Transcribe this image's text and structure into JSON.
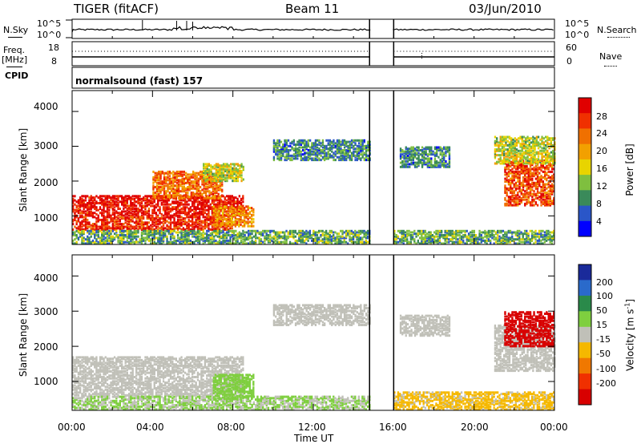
{
  "header": {
    "radar": "TIGER (fitACF)",
    "beam": "Beam 11",
    "date": "03/Jun/2010"
  },
  "strips": {
    "nsky_label": "N.Sky",
    "nsky_ticks": [
      "10^5",
      "10^0"
    ],
    "nsearch_label": "N.Search",
    "nsearch_ticks": [
      "10^5",
      "10^0"
    ],
    "freq_label": "Freq.",
    "freq_unit": "[MHz]",
    "freq_ticks": [
      "18",
      "8"
    ],
    "nave_label": "Nave",
    "nave_ticks": [
      "60",
      "0"
    ],
    "cpid_label": "CPID",
    "cpid_text": "normalsound (fast) 157"
  },
  "colors": {
    "power_scale": [
      "#0000ff",
      "#2a56c8",
      "#3a8a5a",
      "#7fbf3f",
      "#e8d400",
      "#f2a000",
      "#f07000",
      "#f03000",
      "#e00000"
    ],
    "velocity_scale": [
      "#1a2a9a",
      "#2a6acb",
      "#2a8a4a",
      "#7fcf3f",
      "#c0c0b8",
      "#f5b800",
      "#f07800",
      "#f03000",
      "#d80000"
    ],
    "ground_scatter": "#c0c0b8"
  },
  "chart_data": [
    {
      "type": "heatmap",
      "title": "",
      "xlabel": "Time UT",
      "ylabel": "Slant Range [km]",
      "x_ticks": [
        "00:00",
        "04:00",
        "08:00",
        "12:00",
        "16:00",
        "20:00",
        "00:00"
      ],
      "x_range_hours": [
        0,
        24
      ],
      "y_ticks": [
        "4000",
        "3000",
        "2000",
        "1000"
      ],
      "y_range_km": [
        180,
        4600
      ],
      "data_gap_hours": [
        14.8,
        16.0
      ],
      "colorbar": {
        "label": "Power [dB]",
        "ticks": [
          "28",
          "24",
          "20",
          "16",
          "12",
          "8",
          "4"
        ],
        "range": [
          0,
          30
        ]
      },
      "regions": [
        {
          "t": [
            0.0,
            8.5
          ],
          "r": [
            1000,
            1600
          ],
          "v": 28
        },
        {
          "t": [
            0.0,
            8.0
          ],
          "r": [
            600,
            1000
          ],
          "v": 26
        },
        {
          "t": [
            4.0,
            7.5
          ],
          "r": [
            1500,
            2300
          ],
          "v": 22
        },
        {
          "t": [
            6.5,
            8.5
          ],
          "r": [
            2000,
            2500
          ],
          "v": 14
        },
        {
          "t": [
            0.0,
            14.8
          ],
          "r": [
            200,
            600
          ],
          "v": 10
        },
        {
          "t": [
            7.0,
            9.0
          ],
          "r": [
            700,
            1300
          ],
          "v": 20
        },
        {
          "t": [
            10.0,
            14.8
          ],
          "r": [
            2600,
            3200
          ],
          "v": 8
        },
        {
          "t": [
            16.0,
            24.0
          ],
          "r": [
            200,
            600
          ],
          "v": 10
        },
        {
          "t": [
            16.3,
            18.8
          ],
          "r": [
            2400,
            3000
          ],
          "v": 8
        },
        {
          "t": [
            21.5,
            24.0
          ],
          "r": [
            1300,
            2600
          ],
          "v": 24
        },
        {
          "t": [
            21.0,
            24.0
          ],
          "r": [
            2500,
            3300
          ],
          "v": 14
        }
      ]
    },
    {
      "type": "heatmap",
      "title": "",
      "xlabel": "Time UT",
      "ylabel": "Slant Range [km]",
      "x_ticks": [
        "00:00",
        "04:00",
        "08:00",
        "12:00",
        "16:00",
        "20:00",
        "00:00"
      ],
      "x_range_hours": [
        0,
        24
      ],
      "y_ticks": [
        "4000",
        "3000",
        "2000",
        "1000"
      ],
      "y_range_km": [
        180,
        4600
      ],
      "data_gap_hours": [
        14.8,
        16.0
      ],
      "colorbar": {
        "label": "Velocity [m s",
        "label_sup": "-1",
        "label_close": "]",
        "ticks": [
          "200",
          "100",
          "50",
          "15",
          "-15",
          "-50",
          "-100",
          "-200"
        ],
        "range": [
          -250,
          250
        ]
      },
      "regions": [
        {
          "t": [
            0.0,
            8.5
          ],
          "r": [
            600,
            1700
          ],
          "v": 0
        },
        {
          "t": [
            0.0,
            14.8
          ],
          "r": [
            200,
            600
          ],
          "v": 30
        },
        {
          "t": [
            7.0,
            9.0
          ],
          "r": [
            500,
            1200
          ],
          "v": 60
        },
        {
          "t": [
            10.0,
            14.8
          ],
          "r": [
            2600,
            3200
          ],
          "v": 0
        },
        {
          "t": [
            16.0,
            24.0
          ],
          "r": [
            200,
            700
          ],
          "v": -40
        },
        {
          "t": [
            16.3,
            18.8
          ],
          "r": [
            2300,
            2900
          ],
          "v": 0
        },
        {
          "t": [
            21.0,
            24.0
          ],
          "r": [
            1300,
            2600
          ],
          "v": 0
        },
        {
          "t": [
            21.5,
            24.0
          ],
          "r": [
            2000,
            3000
          ],
          "v": -220
        }
      ]
    }
  ]
}
